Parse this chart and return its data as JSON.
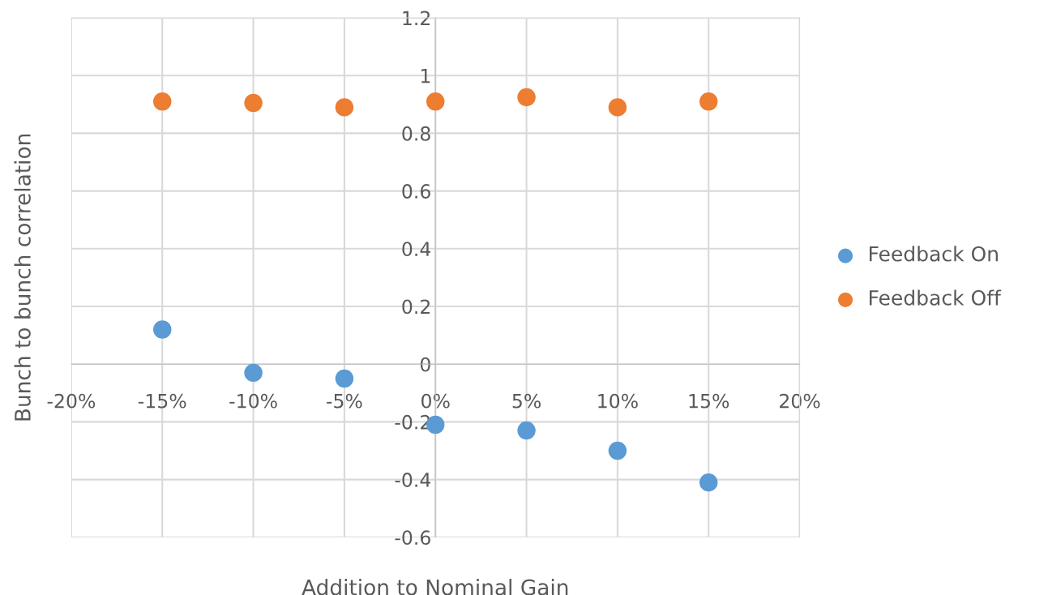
{
  "chart_data": {
    "type": "scatter",
    "xlabel": "Addition to Nominal Gain",
    "ylabel": "Bunch to bunch correlation",
    "x": [
      -15,
      -10,
      -5,
      0,
      5,
      10,
      15
    ],
    "series": [
      {
        "name": "Feedback On",
        "color": "#5b9bd5",
        "values": [
          0.12,
          -0.03,
          -0.05,
          -0.21,
          -0.23,
          -0.3,
          -0.41
        ]
      },
      {
        "name": "Feedback Off",
        "color": "#ed7d31",
        "values": [
          0.91,
          0.905,
          0.89,
          0.91,
          0.925,
          0.89,
          0.91
        ]
      }
    ],
    "xlim": [
      -20,
      20
    ],
    "xticks": [
      {
        "value": -20,
        "label": "-20%"
      },
      {
        "value": -15,
        "label": "-15%"
      },
      {
        "value": -10,
        "label": "-10%"
      },
      {
        "value": -5,
        "label": "-5%"
      },
      {
        "value": 0,
        "label": "0%"
      },
      {
        "value": 5,
        "label": "5%"
      },
      {
        "value": 10,
        "label": "10%"
      },
      {
        "value": 15,
        "label": "15%"
      },
      {
        "value": 20,
        "label": "20%"
      }
    ],
    "ylim": [
      -0.6,
      1.2
    ],
    "yticks": [
      -0.6,
      -0.4,
      -0.2,
      0,
      0.2,
      0.4,
      0.6,
      0.8,
      1,
      1.2
    ],
    "grid": true,
    "legend": "right",
    "marker": "circle"
  }
}
